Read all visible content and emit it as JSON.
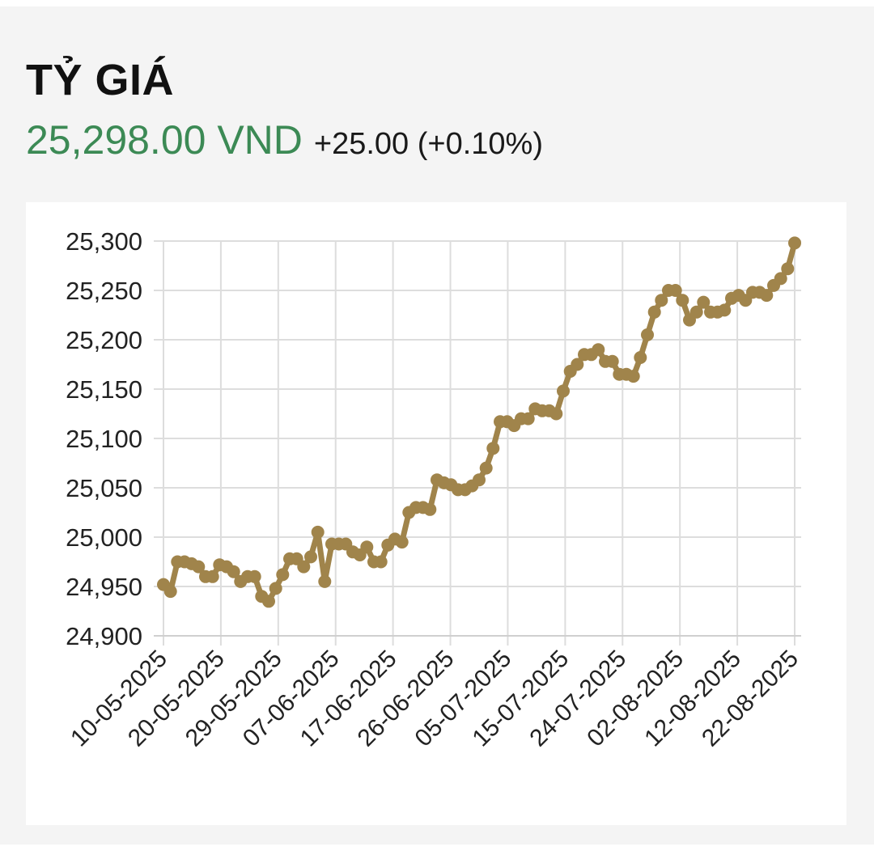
{
  "header": {
    "title": "TỶ GIÁ",
    "price": "25,298.00 VND",
    "change": "+25.00 (+0.10%)"
  },
  "colors": {
    "price": "#3c8a55",
    "line": "#a0844b",
    "grid": "#dddddd",
    "background": "#f4f4f4"
  },
  "chart_data": {
    "type": "line",
    "title": "",
    "xlabel": "",
    "ylabel": "",
    "ylim": [
      24900,
      25300
    ],
    "yticks": [
      "25,300",
      "25,250",
      "25,200",
      "25,150",
      "25,100",
      "25,050",
      "25,000",
      "24,950",
      "24,900"
    ],
    "ytick_values": [
      25300,
      25250,
      25200,
      25150,
      25100,
      25050,
      25000,
      24950,
      24900
    ],
    "xticks": [
      "10-05-2025",
      "20-05-2025",
      "29-05-2025",
      "07-06-2025",
      "17-06-2025",
      "26-06-2025",
      "05-07-2025",
      "15-07-2025",
      "24-07-2025",
      "02-08-2025",
      "12-08-2025",
      "22-08-2025"
    ],
    "grid": true,
    "legend": "none",
    "series": [
      {
        "values": [
          24952,
          24945,
          24975,
          24975,
          24973,
          24970,
          24960,
          24960,
          24972,
          24970,
          24965,
          24955,
          24960,
          24960,
          24940,
          24935,
          24948,
          24962,
          24978,
          24978,
          24970,
          24980,
          25005,
          24955,
          24993,
          24993,
          24993,
          24985,
          24982,
          24990,
          24975,
          24975,
          24992,
          24998,
          24995,
          25025,
          25030,
          25030,
          25028,
          25058,
          25055,
          25053,
          25048,
          25048,
          25052,
          25058,
          25070,
          25090,
          25117,
          25117,
          25113,
          25120,
          25120,
          25130,
          25128,
          25128,
          25125,
          25148,
          25168,
          25175,
          25185,
          25185,
          25190,
          25178,
          25178,
          25165,
          25165,
          25163,
          25182,
          25205,
          25228,
          25240,
          25250,
          25250,
          25240,
          25220,
          25228,
          25238,
          25228,
          25228,
          25230,
          25242,
          25245,
          25240,
          25248,
          25248,
          25245,
          25255,
          25262,
          25272,
          25298
        ]
      }
    ]
  }
}
